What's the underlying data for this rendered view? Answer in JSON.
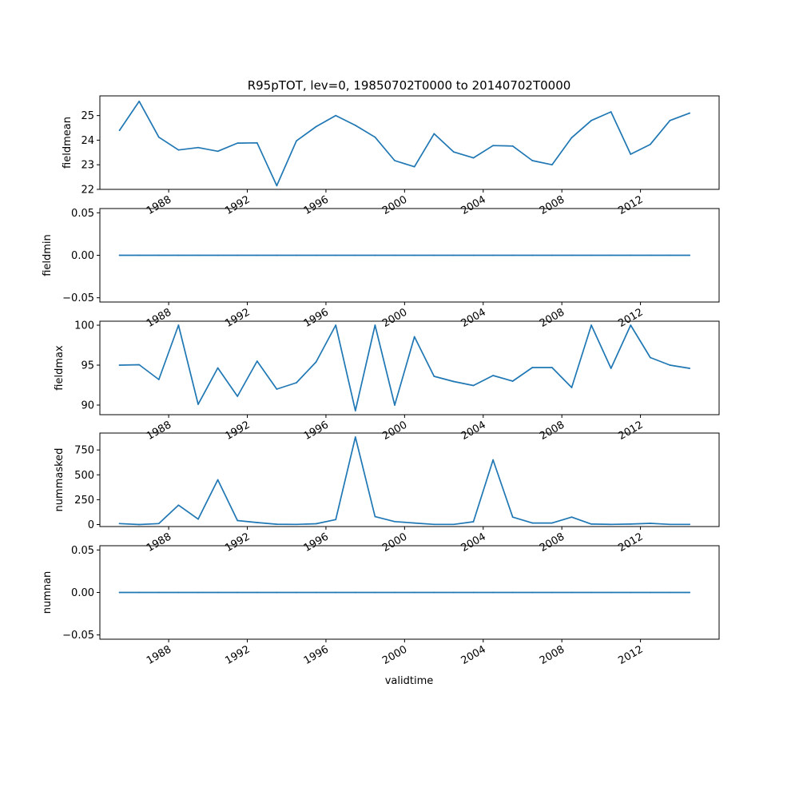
{
  "figure": {
    "title": "R95pTOT, lev=0, 19850702T0000 to 20140702T0000",
    "xlabel": "validtime",
    "line_color": "#1f77b4"
  },
  "chart_data": [
    {
      "type": "line",
      "ylabel": "fieldmean",
      "xlim": [
        1984.5,
        2016.0
      ],
      "ylim": [
        22.0,
        25.8
      ],
      "x_ticks": [
        1988,
        1992,
        1996,
        2000,
        2004,
        2008,
        2012
      ],
      "y_ticks": [
        22,
        23,
        24,
        25
      ],
      "y_tick_labels": [
        "22",
        "23",
        "24",
        "25"
      ],
      "x": [
        1985.5,
        1986.5,
        1987.5,
        1988.5,
        1989.5,
        1990.5,
        1991.5,
        1992.5,
        1993.5,
        1994.5,
        1995.5,
        1996.5,
        1997.5,
        1998.5,
        1999.5,
        2000.5,
        2001.5,
        2002.5,
        2003.5,
        2004.5,
        2005.5,
        2006.5,
        2007.5,
        2008.5,
        2009.5,
        2010.5,
        2011.5,
        2012.5,
        2013.5,
        2014.5
      ],
      "values": [
        24.4,
        25.58,
        24.12,
        23.6,
        23.7,
        23.55,
        23.88,
        23.89,
        22.15,
        23.97,
        24.55,
        25.0,
        24.6,
        24.12,
        23.17,
        22.92,
        24.26,
        23.52,
        23.28,
        23.78,
        23.76,
        23.17,
        23.0,
        24.1,
        24.8,
        25.15,
        23.43,
        23.83,
        24.8,
        25.1
      ]
    },
    {
      "type": "line",
      "ylabel": "fieldmin",
      "xlim": [
        1984.5,
        2016.0
      ],
      "ylim": [
        -0.055,
        0.055
      ],
      "x_ticks": [
        1988,
        1992,
        1996,
        2000,
        2004,
        2008,
        2012
      ],
      "y_ticks": [
        -0.05,
        0.0,
        0.05
      ],
      "y_tick_labels": [
        "−0.05",
        "0.00",
        "0.05"
      ],
      "x": [
        1985.5,
        1986.5,
        1987.5,
        1988.5,
        1989.5,
        1990.5,
        1991.5,
        1992.5,
        1993.5,
        1994.5,
        1995.5,
        1996.5,
        1997.5,
        1998.5,
        1999.5,
        2000.5,
        2001.5,
        2002.5,
        2003.5,
        2004.5,
        2005.5,
        2006.5,
        2007.5,
        2008.5,
        2009.5,
        2010.5,
        2011.5,
        2012.5,
        2013.5,
        2014.5
      ],
      "values": [
        0,
        0,
        0,
        0,
        0,
        0,
        0,
        0,
        0,
        0,
        0,
        0,
        0,
        0,
        0,
        0,
        0,
        0,
        0,
        0,
        0,
        0,
        0,
        0,
        0,
        0,
        0,
        0,
        0,
        0
      ]
    },
    {
      "type": "line",
      "ylabel": "fieldmax",
      "xlim": [
        1984.5,
        2016.0
      ],
      "ylim": [
        88.8,
        100.5
      ],
      "x_ticks": [
        1988,
        1992,
        1996,
        2000,
        2004,
        2008,
        2012
      ],
      "y_ticks": [
        90,
        95,
        100
      ],
      "y_tick_labels": [
        "90",
        "95",
        "100"
      ],
      "x": [
        1985.5,
        1986.5,
        1987.5,
        1988.5,
        1989.5,
        1990.5,
        1991.5,
        1992.5,
        1993.5,
        1994.5,
        1995.5,
        1996.5,
        1997.5,
        1998.5,
        1999.5,
        2000.5,
        2001.5,
        2002.5,
        2003.5,
        2004.5,
        2005.5,
        2006.5,
        2007.5,
        2008.5,
        2009.5,
        2010.5,
        2011.5,
        2012.5,
        2013.5,
        2014.5
      ],
      "values": [
        95.0,
        95.05,
        93.2,
        100.0,
        90.1,
        94.65,
        91.1,
        95.5,
        92.0,
        92.8,
        95.4,
        100.0,
        89.3,
        100.0,
        90.0,
        98.55,
        93.6,
        92.95,
        92.45,
        93.7,
        93.0,
        94.7,
        94.7,
        92.2,
        100.0,
        94.6,
        100.0,
        95.95,
        95.0,
        94.6
      ]
    },
    {
      "type": "line",
      "ylabel": "nummasked",
      "xlim": [
        1984.5,
        2016.0
      ],
      "ylim": [
        -20,
        920
      ],
      "x_ticks": [
        1988,
        1992,
        1996,
        2000,
        2004,
        2008,
        2012
      ],
      "y_ticks": [
        0,
        250,
        500,
        750
      ],
      "y_tick_labels": [
        "0",
        "250",
        "500",
        "750"
      ],
      "x": [
        1985.5,
        1986.5,
        1987.5,
        1988.5,
        1989.5,
        1990.5,
        1991.5,
        1992.5,
        1993.5,
        1994.5,
        1995.5,
        1996.5,
        1997.5,
        1998.5,
        1999.5,
        2000.5,
        2001.5,
        2002.5,
        2003.5,
        2004.5,
        2005.5,
        2006.5,
        2007.5,
        2008.5,
        2009.5,
        2010.5,
        2011.5,
        2012.5,
        2013.5,
        2014.5
      ],
      "values": [
        10,
        0,
        10,
        195,
        55,
        450,
        40,
        20,
        3,
        2,
        8,
        50,
        880,
        80,
        30,
        15,
        2,
        2,
        28,
        650,
        75,
        15,
        15,
        75,
        5,
        2,
        5,
        12,
        2,
        2
      ]
    },
    {
      "type": "line",
      "ylabel": "numnan",
      "xlim": [
        1984.5,
        2016.0
      ],
      "ylim": [
        -0.055,
        0.055
      ],
      "x_ticks": [
        1988,
        1992,
        1996,
        2000,
        2004,
        2008,
        2012
      ],
      "y_ticks": [
        -0.05,
        0.0,
        0.05
      ],
      "y_tick_labels": [
        "−0.05",
        "0.00",
        "0.05"
      ],
      "x": [
        1985.5,
        1986.5,
        1987.5,
        1988.5,
        1989.5,
        1990.5,
        1991.5,
        1992.5,
        1993.5,
        1994.5,
        1995.5,
        1996.5,
        1997.5,
        1998.5,
        1999.5,
        2000.5,
        2001.5,
        2002.5,
        2003.5,
        2004.5,
        2005.5,
        2006.5,
        2007.5,
        2008.5,
        2009.5,
        2010.5,
        2011.5,
        2012.5,
        2013.5,
        2014.5
      ],
      "values": [
        0,
        0,
        0,
        0,
        0,
        0,
        0,
        0,
        0,
        0,
        0,
        0,
        0,
        0,
        0,
        0,
        0,
        0,
        0,
        0,
        0,
        0,
        0,
        0,
        0,
        0,
        0,
        0,
        0,
        0
      ]
    }
  ]
}
